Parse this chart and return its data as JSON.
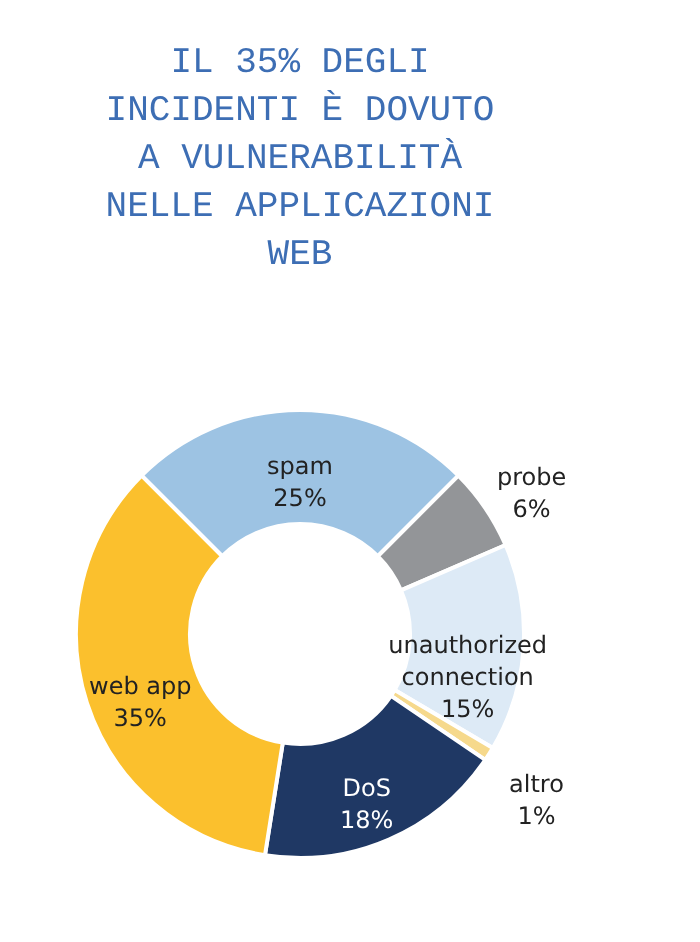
{
  "chart_data": {
    "type": "donut",
    "title": "IL 35% DEGLI INCIDENTI È DOVUTO A VULNERABILITÀ NELLE APPLICAZIONI WEB",
    "categories": [
      "spam",
      "probe",
      "unauthorized connection",
      "altro",
      "DoS",
      "web app"
    ],
    "values": [
      25,
      6,
      15,
      1,
      18,
      35
    ],
    "value_labels": [
      "25%",
      "6%",
      "15%",
      "1%",
      "18%",
      "35%"
    ],
    "colors": [
      "#9dc3e3",
      "#939598",
      "#ddeaf6",
      "#f6d98c",
      "#1f3864",
      "#fbc02d"
    ]
  }
}
